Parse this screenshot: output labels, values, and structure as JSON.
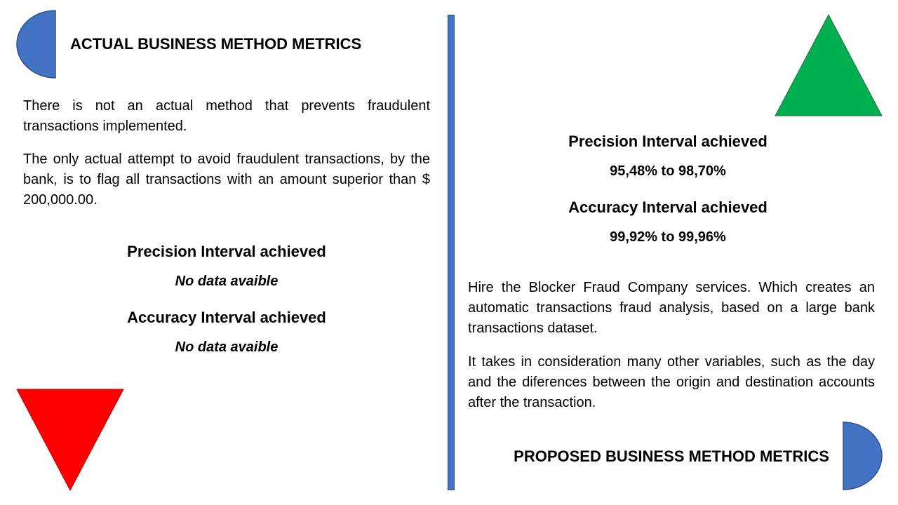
{
  "left": {
    "title": "ACTUAL BUSINESS METHOD METRICS",
    "paragraph1": "There is not an actual method that prevents fraudulent transactions implemented.",
    "paragraph2": "The only actual attempt to avoid fraudulent transactions, by the bank, is to flag all transactions with an amount superior than $ 200,000.00.",
    "precision_heading": "Precision Interval achieved",
    "precision_value": "No data avaible",
    "accuracy_heading": "Accuracy Interval achieved",
    "accuracy_value": "No data avaible"
  },
  "right": {
    "precision_heading": "Precision Interval achieved",
    "precision_value": "95,48% to 98,70%",
    "accuracy_heading": "Accuracy Interval achieved",
    "accuracy_value": "99,92% to 99,96%",
    "paragraph1": "Hire the Blocker Fraud Company services. Which creates an automatic transactions fraud analysis, based on a large bank transactions dataset.",
    "paragraph2": "It takes in consideration many other variables, such as the day and the diferences between the origin and destination accounts after the transaction.",
    "title": "PROPOSED BUSINESS METHOD METRICS"
  },
  "colors": {
    "blue_shape": "#4472c4",
    "green_triangle": "#00b050",
    "red_triangle": "#ff0000",
    "divider": "#4472c4"
  }
}
